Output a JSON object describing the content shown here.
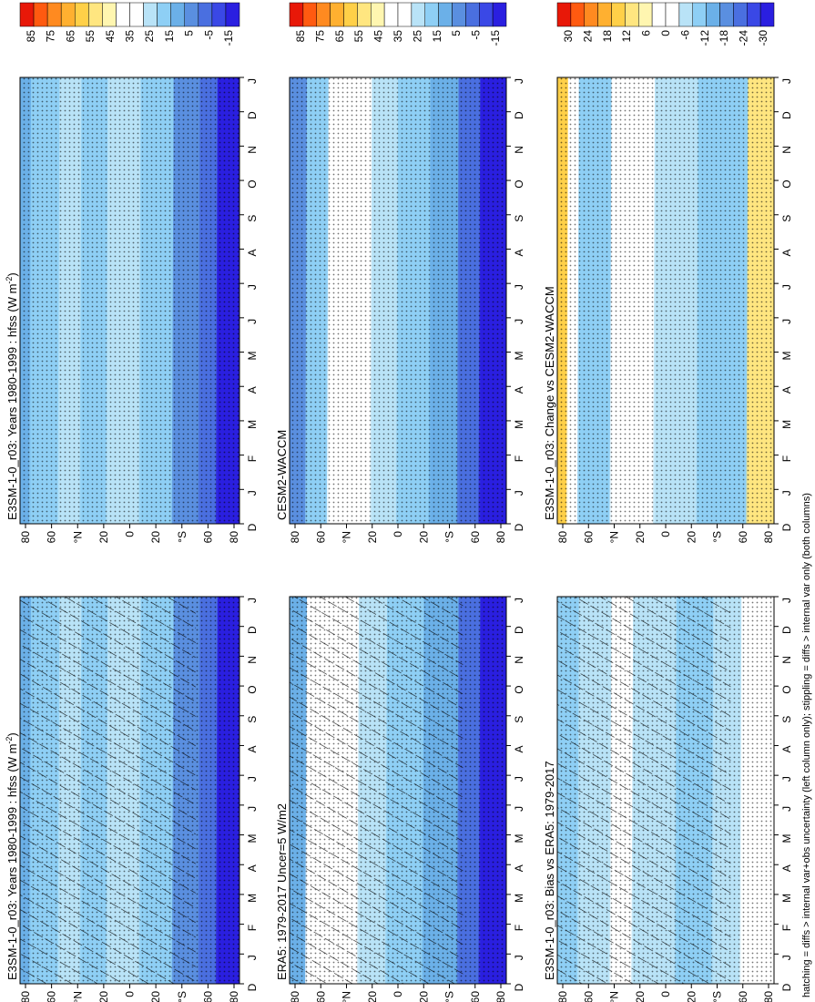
{
  "figure": {
    "footnote": "hatching = diffs > internal var+obs uncertainty (left column only); stippling = diffs > internal var only (both columns)"
  },
  "colors": {
    "abs_scale": [
      "#2a1fe0",
      "#3a48e6",
      "#4a6fe0",
      "#5a8fe0",
      "#6bb0e8",
      "#8ecff5",
      "#b9e3f7",
      "#ffffff",
      "#ffffff",
      "#fff6b0",
      "#ffe680",
      "#ffd048",
      "#ffb030",
      "#ff8a20",
      "#ff5a10",
      "#e81808"
    ],
    "diff_scale": [
      "#2a1fe0",
      "#3a48e6",
      "#4a6fe0",
      "#5a8fe0",
      "#6bb0e8",
      "#8ecff5",
      "#b9e3f7",
      "#ffffff",
      "#ffffff",
      "#fff6b0",
      "#ffe680",
      "#ffd048",
      "#ffb030",
      "#ff8a20",
      "#ff5a10",
      "#e81808"
    ]
  },
  "chart_data": [
    {
      "id": "panel-left-top",
      "type": "heatmap",
      "title": "E3SM-1-0_r03: Years 1980-1999 : hfss (W m",
      "title_sup": "-2",
      "title_end": ")",
      "x_ticks": [
        "D",
        "J",
        "F",
        "M",
        "A",
        "M",
        "J",
        "J",
        "A",
        "S",
        "O",
        "N",
        "D",
        "J"
      ],
      "y_ticks": [
        "80",
        "60",
        "°N",
        "20",
        "0",
        "20",
        "°S",
        "60",
        "80"
      ],
      "colorbar_labels": [
        "85",
        "75",
        "65",
        "55",
        "45",
        "35",
        "25",
        "15",
        "5",
        "-5",
        "-15"
      ],
      "scale": "abs",
      "hatching": true,
      "stippling": true,
      "bands": [
        [
          "#6bb0e8",
          0.0,
          0.05
        ],
        [
          "#8ecff5",
          0.05,
          0.18
        ],
        [
          "#b9e3f7",
          0.18,
          0.28
        ],
        [
          "#8ecff5",
          0.28,
          0.4
        ],
        [
          "#b9e3f7",
          0.4,
          0.55
        ],
        [
          "#8ecff5",
          0.55,
          0.7
        ],
        [
          "#5a8fe0",
          0.7,
          0.82
        ],
        [
          "#4a6fe0",
          0.82,
          0.9
        ],
        [
          "#2a1fe0",
          0.9,
          1.0
        ]
      ]
    },
    {
      "id": "panel-right-top",
      "type": "heatmap",
      "title": "E3SM-1-0_r03: Years 1980-1999 : hfss (W m",
      "title_sup": "-2",
      "title_end": ")",
      "x_ticks": [
        "D",
        "J",
        "F",
        "M",
        "A",
        "M",
        "J",
        "J",
        "A",
        "S",
        "O",
        "N",
        "D",
        "J"
      ],
      "y_ticks": [
        "80",
        "60",
        "°N",
        "20",
        "0",
        "20",
        "°S",
        "60",
        "80"
      ],
      "colorbar_labels": [
        "85",
        "75",
        "65",
        "55",
        "45",
        "35",
        "25",
        "15",
        "5",
        "-5",
        "-15"
      ],
      "scale": "abs",
      "hatching": false,
      "stippling": true,
      "bands": [
        [
          "#6bb0e8",
          0.0,
          0.05
        ],
        [
          "#8ecff5",
          0.05,
          0.18
        ],
        [
          "#b9e3f7",
          0.18,
          0.28
        ],
        [
          "#8ecff5",
          0.28,
          0.4
        ],
        [
          "#b9e3f7",
          0.4,
          0.55
        ],
        [
          "#8ecff5",
          0.55,
          0.7
        ],
        [
          "#5a8fe0",
          0.7,
          0.82
        ],
        [
          "#4a6fe0",
          0.82,
          0.9
        ],
        [
          "#2a1fe0",
          0.9,
          1.0
        ]
      ]
    },
    {
      "id": "panel-left-mid",
      "type": "heatmap",
      "title": "ERA5: 1979-2017 Uncer=5 W/m2",
      "title_sup": "",
      "title_end": "",
      "x_ticks": [
        "D",
        "J",
        "F",
        "M",
        "A",
        "M",
        "J",
        "J",
        "A",
        "S",
        "O",
        "N",
        "D",
        "J"
      ],
      "y_ticks": [
        "80",
        "60",
        "°N",
        "20",
        "0",
        "20",
        "°S",
        "60",
        "80"
      ],
      "colorbar_labels": [
        "85",
        "75",
        "65",
        "55",
        "45",
        "35",
        "25",
        "15",
        "5",
        "-5",
        "-15"
      ],
      "scale": "abs",
      "hatching": true,
      "stippling": true,
      "bands": [
        [
          "#6bb0e8",
          0.0,
          0.08
        ],
        [
          "#ffffff",
          0.08,
          0.2
        ],
        [
          "#ffffff",
          0.2,
          0.32
        ],
        [
          "#b9e3f7",
          0.32,
          0.45
        ],
        [
          "#8ecff5",
          0.45,
          0.62
        ],
        [
          "#6bb0e8",
          0.62,
          0.78
        ],
        [
          "#4a6fe0",
          0.78,
          0.88
        ],
        [
          "#2a1fe0",
          0.88,
          1.0
        ]
      ]
    },
    {
      "id": "panel-right-mid",
      "type": "heatmap",
      "title": "CESM2-WACCM",
      "title_sup": "",
      "title_end": "",
      "x_ticks": [
        "D",
        "J",
        "F",
        "M",
        "A",
        "M",
        "J",
        "J",
        "A",
        "S",
        "O",
        "N",
        "D",
        "J"
      ],
      "y_ticks": [
        "80",
        "60",
        "°N",
        "20",
        "0",
        "20",
        "°S",
        "60",
        "80"
      ],
      "colorbar_labels": [
        "85",
        "75",
        "65",
        "55",
        "45",
        "35",
        "25",
        "15",
        "5",
        "-5",
        "-15"
      ],
      "scale": "abs",
      "hatching": false,
      "stippling": true,
      "bands": [
        [
          "#5a8fe0",
          0.0,
          0.08
        ],
        [
          "#8ecff5",
          0.08,
          0.18
        ],
        [
          "#ffffff",
          0.18,
          0.38
        ],
        [
          "#b9e3f7",
          0.38,
          0.5
        ],
        [
          "#8ecff5",
          0.5,
          0.65
        ],
        [
          "#6bb0e8",
          0.65,
          0.78
        ],
        [
          "#4a6fe0",
          0.78,
          0.88
        ],
        [
          "#2a1fe0",
          0.88,
          1.0
        ]
      ]
    },
    {
      "id": "panel-left-bot",
      "type": "heatmap",
      "title": "E3SM-1-0_r03: Bias vs ERA5: 1979-2017",
      "title_sup": "",
      "title_end": "",
      "x_ticks": [
        "D",
        "J",
        "F",
        "M",
        "A",
        "M",
        "J",
        "J",
        "A",
        "S",
        "O",
        "N",
        "D",
        "J"
      ],
      "y_ticks": [
        "80",
        "60",
        "°N",
        "20",
        "0",
        "20",
        "°S",
        "60",
        "80"
      ],
      "colorbar_labels": [
        "30",
        "24",
        "18",
        "12",
        "6",
        "0",
        "-6",
        "-12",
        "-18",
        "-24",
        "-30"
      ],
      "scale": "diff",
      "hatching": true,
      "stippling": true,
      "bands": [
        [
          "#8ecff5",
          0.0,
          0.1
        ],
        [
          "#b9e3f7",
          0.1,
          0.25
        ],
        [
          "#ffffff",
          0.25,
          0.35
        ],
        [
          "#b9e3f7",
          0.35,
          0.55
        ],
        [
          "#8ecff5",
          0.55,
          0.72
        ],
        [
          "#b9e3f7",
          0.72,
          0.85
        ],
        [
          "#ffffff",
          0.85,
          1.0
        ]
      ]
    },
    {
      "id": "panel-right-bot",
      "type": "heatmap",
      "title": "E3SM-1-0_r03: Change vs CESM2-WACCM",
      "title_sup": "",
      "title_end": "",
      "x_ticks": [
        "D",
        "J",
        "F",
        "M",
        "A",
        "M",
        "J",
        "J",
        "A",
        "S",
        "O",
        "N",
        "D",
        "J"
      ],
      "y_ticks": [
        "80",
        "60",
        "°N",
        "20",
        "0",
        "20",
        "°S",
        "60",
        "80"
      ],
      "colorbar_labels": [
        "30",
        "24",
        "18",
        "12",
        "6",
        "0",
        "-6",
        "-12",
        "-18",
        "-24",
        "-30"
      ],
      "scale": "diff",
      "hatching": false,
      "stippling": true,
      "bands": [
        [
          "#ffd048",
          0.0,
          0.05
        ],
        [
          "#ffffff",
          0.05,
          0.1
        ],
        [
          "#8ecff5",
          0.1,
          0.25
        ],
        [
          "#ffffff",
          0.25,
          0.45
        ],
        [
          "#b9e3f7",
          0.45,
          0.65
        ],
        [
          "#8ecff5",
          0.65,
          0.88
        ],
        [
          "#ffe680",
          0.88,
          1.0
        ]
      ]
    }
  ]
}
